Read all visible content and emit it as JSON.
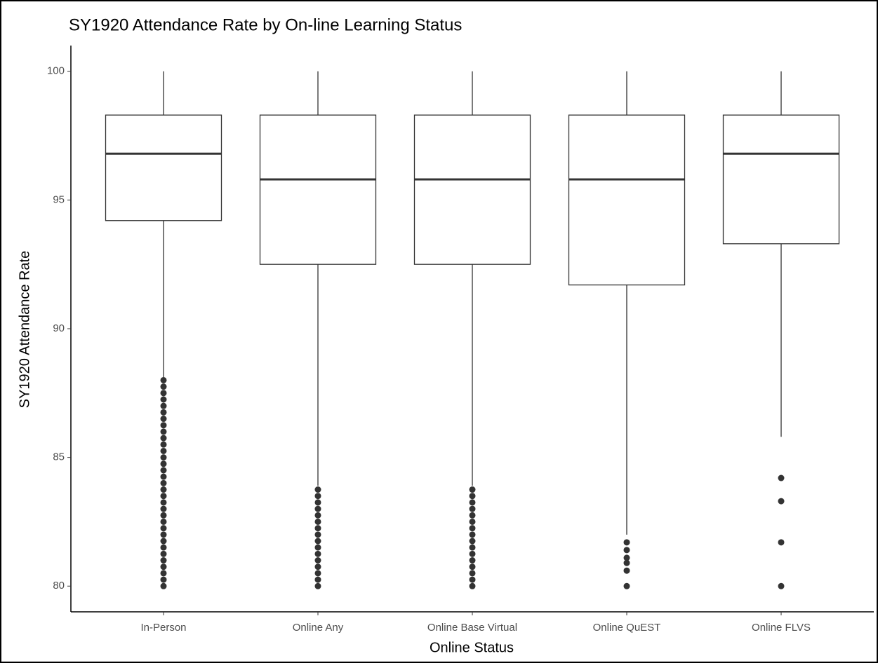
{
  "chart_data": {
    "type": "box",
    "title": "SY1920 Attendance Rate by On-line Learning Status",
    "x_label": "Online Status",
    "y_label": "SY1920 Attendance Rate",
    "categories": [
      "In-Person",
      "Online Any",
      "Online Base Virtual",
      "Online QuEST",
      "Online FLVS"
    ],
    "boxes": [
      {
        "whisker_low": 88.1,
        "q1": 94.2,
        "median": 96.8,
        "q3": 98.3,
        "whisker_high": 100,
        "outliers": [
          80,
          80.25,
          80.5,
          80.75,
          81,
          81.25,
          81.5,
          81.75,
          82,
          82.25,
          82.5,
          82.75,
          83,
          83.25,
          83.5,
          83.75,
          84,
          84.25,
          84.5,
          84.75,
          85,
          85.25,
          85.5,
          85.75,
          86,
          86.25,
          86.5,
          86.75,
          87,
          87.25,
          87.5,
          87.75,
          88
        ]
      },
      {
        "whisker_low": 83.9,
        "q1": 92.5,
        "median": 95.8,
        "q3": 98.3,
        "whisker_high": 100,
        "outliers": [
          80,
          80.25,
          80.5,
          80.75,
          81,
          81.25,
          81.5,
          81.75,
          82,
          82.25,
          82.5,
          82.75,
          83,
          83.25,
          83.5,
          83.75
        ]
      },
      {
        "whisker_low": 83.9,
        "q1": 92.5,
        "median": 95.8,
        "q3": 98.3,
        "whisker_high": 100,
        "outliers": [
          80,
          80.25,
          80.5,
          80.75,
          81,
          81.25,
          81.5,
          81.75,
          82,
          82.25,
          82.5,
          82.75,
          83,
          83.25,
          83.5,
          83.75
        ]
      },
      {
        "whisker_low": 82,
        "q1": 91.7,
        "median": 95.8,
        "q3": 98.3,
        "whisker_high": 100,
        "outliers": [
          80,
          80.6,
          80.9,
          81.1,
          81.4,
          81.7
        ]
      },
      {
        "whisker_low": 85.8,
        "q1": 93.3,
        "median": 96.8,
        "q3": 98.3,
        "whisker_high": 100,
        "outliers": [
          80,
          81.7,
          83.3,
          84.2
        ]
      }
    ],
    "ylim": [
      79,
      101
    ],
    "yticks": [
      80,
      85,
      90,
      95,
      100
    ],
    "box_color": "#333333",
    "fill": "#ffffff",
    "grid": false
  }
}
